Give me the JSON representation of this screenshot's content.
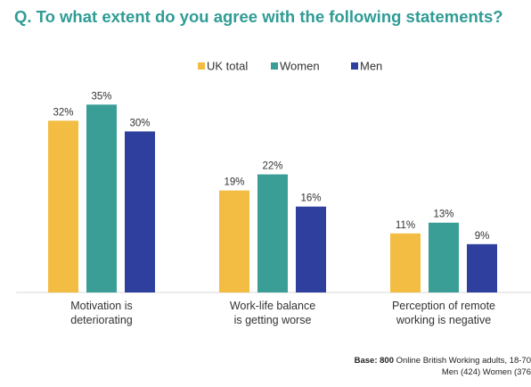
{
  "title": "Q. To what extent do you agree with the following statements?",
  "chart_data": {
    "type": "bar",
    "categories": [
      [
        "Motivation is",
        "deteriorating"
      ],
      [
        "Work-life balance",
        "is getting worse"
      ],
      [
        "Perception of remote",
        "working is negative"
      ]
    ],
    "series": [
      {
        "name": "UK total",
        "color": "#f2bd42",
        "values": [
          32,
          19,
          11
        ],
        "labels": [
          "32%",
          "19%",
          "11%"
        ]
      },
      {
        "name": "Women",
        "color": "#3a9e97",
        "values": [
          35,
          22,
          13
        ],
        "labels": [
          "35%",
          "22%",
          "13%"
        ]
      },
      {
        "name": "Men",
        "color": "#2e3f9e",
        "values": [
          30,
          16,
          9
        ],
        "labels": [
          "30%",
          "16%",
          "9%"
        ]
      }
    ],
    "ylim": [
      0,
      40
    ],
    "legend": "top-center",
    "grid": false
  },
  "base_note": {
    "label": "Base: 800",
    "line1_rest": " Online British Working adults, 18-70",
    "line2": "Men (424) Women (376"
  }
}
